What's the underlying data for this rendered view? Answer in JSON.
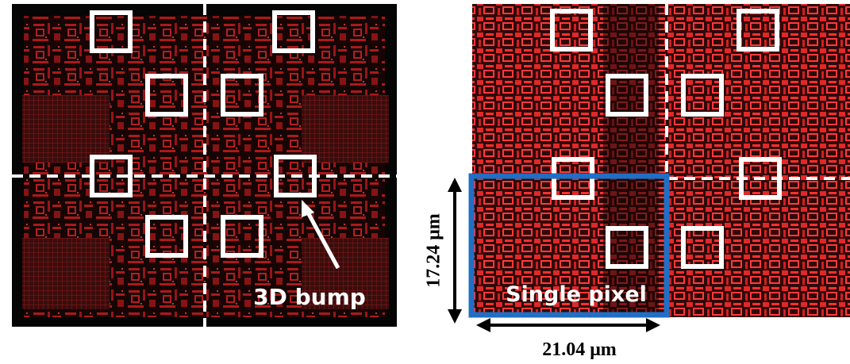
{
  "annotations": {
    "bump": "3D bump",
    "pixel": "Single pixel",
    "height": "17.24 μm",
    "width": "21.04 μm"
  }
}
